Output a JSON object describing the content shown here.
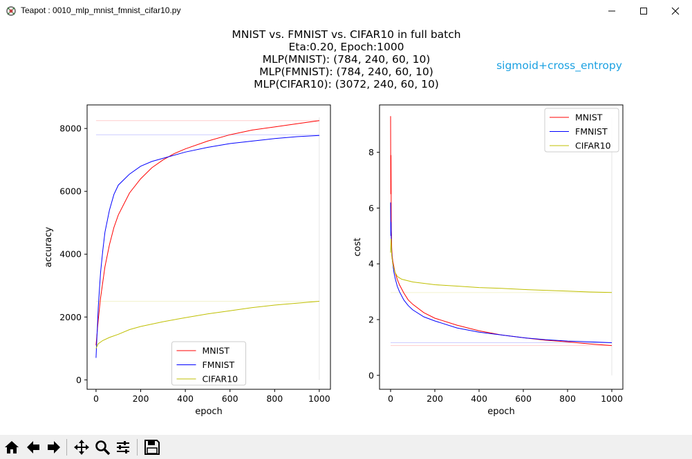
{
  "window": {
    "title": "Teapot : 0010_mlp_mnist_fmnist_cifar10.py",
    "minimize_glyph": "—",
    "maximize_glyph": "☐",
    "close_glyph": "✕"
  },
  "figure": {
    "title_lines": [
      "MNIST vs. FMNIST vs. CIFAR10 in full batch",
      "Eta:0.20, Epoch:1000",
      "MLP(MNIST): (784, 240, 60, 10)",
      "MLP(FMNIST): (784, 240, 60, 10)",
      "MLP(CIFAR10): (3072, 240, 60, 10)"
    ],
    "annotation": "sigmoid+cross_entropy",
    "annotation_color": "#1ba1e2"
  },
  "colors": {
    "MNIST": "#ff0000",
    "FMNIST": "#0000ff",
    "CIFAR10": "#bfbf00"
  },
  "chart_data": [
    {
      "type": "line",
      "xlabel": "epoch",
      "ylabel": "accuracy",
      "xlim": [
        -40,
        1050
      ],
      "ylim": [
        -300,
        8750
      ],
      "xticks": [
        0,
        200,
        400,
        600,
        800,
        1000
      ],
      "yticks": [
        0,
        2000,
        4000,
        6000,
        8000
      ],
      "legend_position": "lower-center",
      "reference_lines": [
        {
          "name": "MNIST",
          "y": 8250
        },
        {
          "name": "FMNIST",
          "y": 7800
        },
        {
          "name": "CIFAR10",
          "y": 2500
        }
      ],
      "series": [
        {
          "name": "MNIST",
          "x": [
            0,
            10,
            20,
            40,
            60,
            80,
            100,
            150,
            200,
            250,
            300,
            350,
            400,
            500,
            600,
            700,
            800,
            900,
            1000
          ],
          "y": [
            1100,
            1900,
            2600,
            3600,
            4300,
            4850,
            5250,
            5950,
            6400,
            6750,
            7000,
            7200,
            7350,
            7600,
            7800,
            7950,
            8050,
            8150,
            8250
          ]
        },
        {
          "name": "FMNIST",
          "x": [
            0,
            5,
            10,
            20,
            30,
            40,
            60,
            80,
            100,
            150,
            200,
            250,
            300,
            400,
            500,
            600,
            700,
            800,
            900,
            1000
          ],
          "y": [
            700,
            1500,
            2300,
            3400,
            4100,
            4700,
            5400,
            5900,
            6200,
            6550,
            6800,
            6950,
            7050,
            7250,
            7400,
            7520,
            7600,
            7680,
            7740,
            7780
          ]
        },
        {
          "name": "CIFAR10",
          "x": [
            0,
            10,
            30,
            60,
            100,
            150,
            200,
            300,
            400,
            500,
            600,
            700,
            800,
            900,
            1000
          ],
          "y": [
            1000,
            1150,
            1250,
            1350,
            1450,
            1600,
            1700,
            1850,
            1980,
            2100,
            2200,
            2300,
            2380,
            2440,
            2500
          ]
        }
      ]
    },
    {
      "type": "line",
      "xlabel": "epoch",
      "ylabel": "cost",
      "xlim": [
        -50,
        1050
      ],
      "ylim": [
        -0.5,
        9.7
      ],
      "xticks": [
        0,
        200,
        400,
        600,
        800,
        1000
      ],
      "yticks": [
        0,
        2,
        4,
        6,
        8
      ],
      "legend_position": "upper-right",
      "reference_lines": [
        {
          "name": "MNIST",
          "y": 1.07
        },
        {
          "name": "FMNIST",
          "y": 1.17
        },
        {
          "name": "CIFAR10",
          "y": 2.97
        }
      ],
      "series": [
        {
          "name": "MNIST",
          "x": [
            0,
            1,
            2,
            3,
            4,
            5,
            7,
            10,
            15,
            20,
            30,
            40,
            60,
            80,
            100,
            150,
            200,
            300,
            400,
            500,
            600,
            700,
            800,
            900,
            1000
          ],
          "y": [
            9.3,
            6.5,
            7.9,
            5.2,
            5.0,
            4.6,
            4.3,
            4.1,
            3.9,
            3.7,
            3.45,
            3.25,
            2.95,
            2.7,
            2.55,
            2.25,
            2.05,
            1.8,
            1.6,
            1.45,
            1.35,
            1.26,
            1.2,
            1.13,
            1.07
          ]
        },
        {
          "name": "FMNIST",
          "x": [
            0,
            1,
            2,
            3,
            5,
            7,
            10,
            15,
            20,
            30,
            40,
            60,
            80,
            100,
            150,
            200,
            300,
            400,
            500,
            600,
            700,
            800,
            900,
            1000
          ],
          "y": [
            6.2,
            5.0,
            5.5,
            4.7,
            4.4,
            4.2,
            4.0,
            3.7,
            3.5,
            3.2,
            3.0,
            2.7,
            2.5,
            2.35,
            2.1,
            1.95,
            1.7,
            1.55,
            1.45,
            1.35,
            1.28,
            1.23,
            1.2,
            1.17
          ]
        },
        {
          "name": "CIFAR10",
          "x": [
            0,
            2,
            5,
            10,
            20,
            30,
            50,
            100,
            200,
            300,
            400,
            500,
            600,
            700,
            800,
            900,
            1000
          ],
          "y": [
            4.4,
            4.9,
            4.3,
            4.0,
            3.7,
            3.55,
            3.45,
            3.35,
            3.25,
            3.2,
            3.15,
            3.12,
            3.08,
            3.05,
            3.02,
            2.99,
            2.97
          ]
        }
      ]
    }
  ],
  "toolbar": {
    "home": "home-icon",
    "back": "arrow-left-icon",
    "forward": "arrow-right-icon",
    "pan": "move-icon",
    "zoom": "zoom-icon",
    "configure": "sliders-icon",
    "save": "save-icon"
  }
}
